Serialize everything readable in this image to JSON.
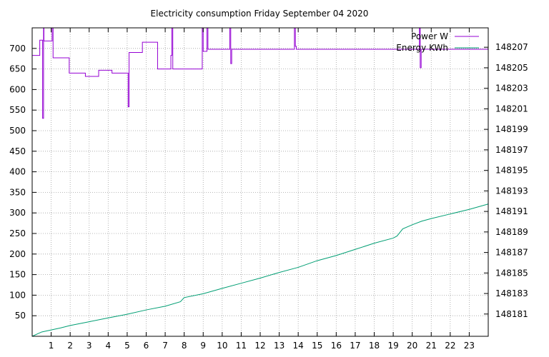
{
  "chart_data": {
    "type": "line",
    "title": "Electricity consumption Friday September 04 2020",
    "xlim": [
      0,
      24
    ],
    "ylim": [
      0,
      750
    ],
    "y2lim": [
      148178.83,
      148208.89
    ],
    "x_ticks": [
      1,
      2,
      3,
      4,
      5,
      6,
      7,
      8,
      9,
      10,
      11,
      12,
      13,
      14,
      15,
      16,
      17,
      18,
      19,
      20,
      21,
      22,
      23
    ],
    "y_ticks": [
      50,
      100,
      150,
      200,
      250,
      300,
      350,
      400,
      450,
      500,
      550,
      600,
      650,
      700
    ],
    "y2_ticks": [
      148181,
      148183,
      148185,
      148187,
      148189,
      148191,
      148193,
      148195,
      148197,
      148199,
      148201,
      148203,
      148205,
      148207
    ],
    "grid": true,
    "legend_position": "top-right",
    "series": [
      {
        "name": "Power W",
        "axis": "y",
        "color": "#9400d3",
        "points": [
          [
            0,
            683
          ],
          [
            0.4,
            683
          ],
          [
            0.4,
            720
          ],
          [
            0.55,
            720
          ],
          [
            0.55,
            530
          ],
          [
            0.6,
            530
          ],
          [
            0.6,
            750
          ],
          [
            0.62,
            750
          ],
          [
            0.62,
            718
          ],
          [
            1.05,
            718
          ],
          [
            1.05,
            750
          ],
          [
            1.1,
            750
          ],
          [
            1.1,
            677
          ],
          [
            1.95,
            677
          ],
          [
            1.95,
            640
          ],
          [
            2.8,
            640
          ],
          [
            2.8,
            632
          ],
          [
            3.5,
            632
          ],
          [
            3.5,
            647
          ],
          [
            4.2,
            647
          ],
          [
            4.2,
            640
          ],
          [
            5.05,
            640
          ],
          [
            5.05,
            558
          ],
          [
            5.1,
            558
          ],
          [
            5.1,
            690
          ],
          [
            5.8,
            690
          ],
          [
            5.8,
            715
          ],
          [
            6.6,
            715
          ],
          [
            6.6,
            650
          ],
          [
            7.3,
            650
          ],
          [
            7.3,
            683
          ],
          [
            7.35,
            683
          ],
          [
            7.35,
            750
          ],
          [
            7.4,
            750
          ],
          [
            7.4,
            650
          ],
          [
            8.95,
            650
          ],
          [
            8.95,
            750
          ],
          [
            9.0,
            750
          ],
          [
            9.0,
            693
          ],
          [
            9.2,
            693
          ],
          [
            9.2,
            750
          ],
          [
            9.25,
            750
          ],
          [
            9.25,
            698
          ],
          [
            10.4,
            698
          ],
          [
            10.4,
            750
          ],
          [
            10.45,
            750
          ],
          [
            10.45,
            663
          ],
          [
            10.5,
            663
          ],
          [
            10.5,
            698
          ],
          [
            13.8,
            698
          ],
          [
            13.8,
            750
          ],
          [
            13.85,
            750
          ],
          [
            13.85,
            705
          ],
          [
            13.9,
            705
          ],
          [
            13.9,
            698
          ],
          [
            20.38,
            698
          ],
          [
            20.38,
            750
          ],
          [
            20.42,
            750
          ],
          [
            20.42,
            653
          ],
          [
            20.47,
            653
          ],
          [
            20.47,
            698
          ],
          [
            24,
            698
          ]
        ]
      },
      {
        "name": "Energy KWh",
        "axis": "y2",
        "color": "#009e73",
        "points": [
          [
            0,
            148178.83
          ],
          [
            0.5,
            148179.25
          ],
          [
            1,
            148179.45
          ],
          [
            1.5,
            148179.65
          ],
          [
            2,
            148179.88
          ],
          [
            3,
            148180.25
          ],
          [
            4,
            148180.62
          ],
          [
            5,
            148180.98
          ],
          [
            6,
            148181.4
          ],
          [
            7,
            148181.76
          ],
          [
            7.8,
            148182.2
          ],
          [
            8,
            148182.6
          ],
          [
            9,
            148182.98
          ],
          [
            10,
            148183.5
          ],
          [
            11,
            148184
          ],
          [
            12,
            148184.5
          ],
          [
            13,
            148185.05
          ],
          [
            14,
            148185.55
          ],
          [
            15,
            148186.2
          ],
          [
            16,
            148186.7
          ],
          [
            17,
            148187.3
          ],
          [
            18,
            148187.9
          ],
          [
            19,
            148188.4
          ],
          [
            19.2,
            148188.6
          ],
          [
            19.5,
            148189.3
          ],
          [
            20,
            148189.7
          ],
          [
            20.5,
            148190.05
          ],
          [
            21,
            148190.3
          ],
          [
            22,
            148190.75
          ],
          [
            23,
            148191.2
          ],
          [
            24,
            148191.72
          ]
        ]
      }
    ]
  }
}
